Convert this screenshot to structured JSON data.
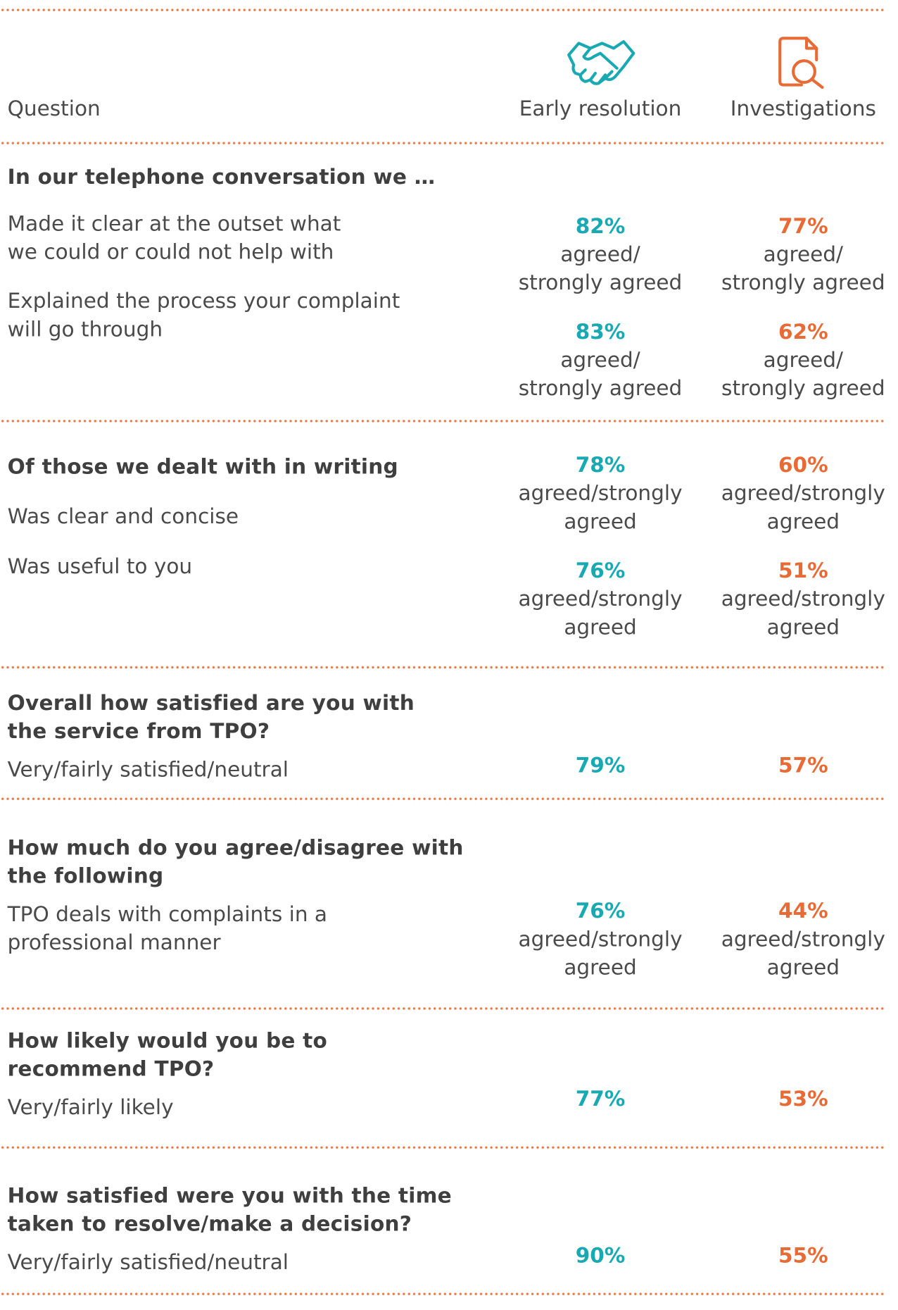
{
  "header": {
    "question": "Question",
    "columns": [
      "Early resolution",
      "Investigations"
    ]
  },
  "sections": [
    {
      "heading": [
        "In our telephone conversation we …"
      ],
      "items": [
        {
          "label": [
            "Made it clear at the outset what",
            "we could or could not help with"
          ],
          "early_resolution": {
            "value": "82%",
            "note": [
              "agreed/",
              "strongly agreed"
            ]
          },
          "investigations": {
            "value": "77%",
            "note": [
              "agreed/",
              "strongly agreed"
            ]
          }
        },
        {
          "label": [
            "Explained the process your complaint",
            "will go through"
          ],
          "early_resolution": {
            "value": "83%",
            "note": [
              "agreed/",
              "strongly agreed"
            ]
          },
          "investigations": {
            "value": "62%",
            "note": [
              "agreed/",
              "strongly agreed"
            ]
          }
        }
      ]
    },
    {
      "heading": [
        "Of those we dealt with in writing"
      ],
      "items": [
        {
          "label": [
            "Was clear and concise"
          ],
          "early_resolution": {
            "value": "78%",
            "note": [
              "agreed/strongly",
              "agreed"
            ]
          },
          "investigations": {
            "value": "60%",
            "note": [
              "agreed/strongly",
              "agreed"
            ]
          }
        },
        {
          "label": [
            "Was useful to you"
          ],
          "early_resolution": {
            "value": "76%",
            "note": [
              "agreed/strongly",
              "agreed"
            ]
          },
          "investigations": {
            "value": "51%",
            "note": [
              "agreed/strongly",
              "agreed"
            ]
          }
        }
      ]
    },
    {
      "heading": [
        "Overall how satisfied are you with",
        "the service from TPO?"
      ],
      "items": [
        {
          "label": [
            "Very/fairly satisfied/neutral"
          ],
          "early_resolution": {
            "value": "79%"
          },
          "investigations": {
            "value": "57%"
          }
        }
      ]
    },
    {
      "heading": [
        "How much do you agree/disagree with",
        "the following"
      ],
      "items": [
        {
          "label": [
            "TPO deals with complaints in a",
            "professional manner"
          ],
          "early_resolution": {
            "value": "76%",
            "note": [
              "agreed/strongly",
              "agreed"
            ]
          },
          "investigations": {
            "value": "44%",
            "note": [
              "agreed/strongly",
              "agreed"
            ]
          }
        }
      ]
    },
    {
      "heading": [
        "How likely would you be to",
        "recommend TPO?"
      ],
      "items": [
        {
          "label": [
            "Very/fairly likely"
          ],
          "early_resolution": {
            "value": "77%"
          },
          "investigations": {
            "value": "53%"
          }
        }
      ]
    },
    {
      "heading": [
        "How satisfied were you with the time",
        "taken to resolve/make a decision?"
      ],
      "items": [
        {
          "label": [
            "Very/fairly satisfied/neutral"
          ],
          "early_resolution": {
            "value": "90%"
          },
          "investigations": {
            "value": "55%"
          }
        }
      ]
    }
  ]
}
